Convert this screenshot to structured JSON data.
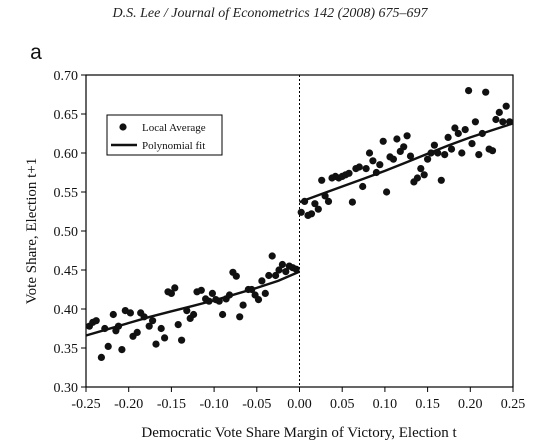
{
  "header": "D.S. Lee / Journal of Econometrics 142 (2008) 675–697",
  "chart_data": {
    "type": "scatter",
    "panel_label": "a",
    "xlabel": "Democratic Vote Share Margin of Victory, Election t",
    "ylabel": "Vote Share, Election t+1",
    "xlim": [
      -0.25,
      0.25
    ],
    "ylim": [
      0.3,
      0.7
    ],
    "xticks": [
      "-0.25",
      "-0.20",
      "-0.15",
      "-0.10",
      "-0.05",
      "0.00",
      "0.05",
      "0.10",
      "0.15",
      "0.20",
      "0.25"
    ],
    "yticks": [
      "0.30",
      "0.35",
      "0.40",
      "0.45",
      "0.50",
      "0.55",
      "0.60",
      "0.65",
      "0.70"
    ],
    "threshold_x": 0.0,
    "legend": {
      "position": "top-left",
      "items": [
        "Local Average",
        "Polynomial fit"
      ]
    },
    "series": [
      {
        "name": "Local Average",
        "kind": "points",
        "x": [
          -0.246,
          -0.242,
          -0.238,
          -0.232,
          -0.228,
          -0.224,
          -0.218,
          -0.215,
          -0.212,
          -0.208,
          -0.204,
          -0.198,
          -0.195,
          -0.19,
          -0.186,
          -0.182,
          -0.176,
          -0.172,
          -0.168,
          -0.162,
          -0.158,
          -0.154,
          -0.15,
          -0.146,
          -0.142,
          -0.138,
          -0.132,
          -0.128,
          -0.124,
          -0.12,
          -0.115,
          -0.11,
          -0.106,
          -0.102,
          -0.098,
          -0.094,
          -0.09,
          -0.086,
          -0.082,
          -0.078,
          -0.074,
          -0.07,
          -0.066,
          -0.06,
          -0.056,
          -0.052,
          -0.048,
          -0.044,
          -0.04,
          -0.036,
          -0.032,
          -0.028,
          -0.024,
          -0.02,
          -0.016,
          -0.012,
          -0.008,
          -0.004,
          0.002,
          0.006,
          0.01,
          0.014,
          0.018,
          0.022,
          0.026,
          0.03,
          0.034,
          0.038,
          0.042,
          0.046,
          0.05,
          0.054,
          0.058,
          0.062,
          0.066,
          0.07,
          0.074,
          0.078,
          0.082,
          0.086,
          0.09,
          0.094,
          0.098,
          0.102,
          0.106,
          0.11,
          0.114,
          0.118,
          0.122,
          0.126,
          0.13,
          0.134,
          0.138,
          0.142,
          0.146,
          0.15,
          0.154,
          0.158,
          0.162,
          0.166,
          0.17,
          0.174,
          0.178,
          0.182,
          0.186,
          0.19,
          0.194,
          0.198,
          0.202,
          0.206,
          0.21,
          0.214,
          0.218,
          0.222,
          0.226,
          0.23,
          0.234,
          0.238,
          0.242,
          0.246
        ],
        "y": [
          0.378,
          0.383,
          0.385,
          0.338,
          0.375,
          0.352,
          0.393,
          0.372,
          0.378,
          0.348,
          0.398,
          0.395,
          0.365,
          0.37,
          0.395,
          0.39,
          0.378,
          0.385,
          0.355,
          0.375,
          0.363,
          0.422,
          0.42,
          0.427,
          0.38,
          0.36,
          0.398,
          0.388,
          0.393,
          0.422,
          0.424,
          0.413,
          0.41,
          0.42,
          0.412,
          0.41,
          0.393,
          0.413,
          0.418,
          0.447,
          0.442,
          0.39,
          0.405,
          0.425,
          0.425,
          0.418,
          0.412,
          0.436,
          0.42,
          0.443,
          0.468,
          0.443,
          0.45,
          0.457,
          0.448,
          0.455,
          0.453,
          0.451,
          0.524,
          0.538,
          0.52,
          0.522,
          0.535,
          0.528,
          0.565,
          0.545,
          0.538,
          0.568,
          0.57,
          0.568,
          0.57,
          0.572,
          0.574,
          0.537,
          0.58,
          0.582,
          0.557,
          0.58,
          0.6,
          0.59,
          0.575,
          0.585,
          0.615,
          0.55,
          0.595,
          0.592,
          0.618,
          0.602,
          0.608,
          0.622,
          0.596,
          0.563,
          0.568,
          0.58,
          0.572,
          0.592,
          0.6,
          0.61,
          0.6,
          0.565,
          0.598,
          0.62,
          0.605,
          0.632,
          0.625,
          0.6,
          0.63,
          0.68,
          0.612,
          0.64,
          0.598,
          0.625,
          0.678,
          0.605,
          0.603,
          0.643,
          0.652,
          0.64,
          0.66,
          0.64
        ]
      },
      {
        "name": "Polynomial fit",
        "kind": "curve",
        "segments": [
          {
            "x": [
              -0.25,
              -0.225,
              -0.2,
              -0.175,
              -0.15,
              -0.125,
              -0.1,
              -0.075,
              -0.05,
              -0.025,
              0.0
            ],
            "y": [
              0.366,
              0.374,
              0.382,
              0.39,
              0.397,
              0.404,
              0.411,
              0.419,
              0.427,
              0.436,
              0.448
            ]
          },
          {
            "x": [
              0.0,
              0.025,
              0.05,
              0.075,
              0.1,
              0.125,
              0.15,
              0.175,
              0.2,
              0.225,
              0.25
            ],
            "y": [
              0.537,
              0.547,
              0.557,
              0.567,
              0.577,
              0.588,
              0.599,
              0.61,
              0.62,
              0.629,
              0.638
            ]
          }
        ]
      }
    ]
  }
}
